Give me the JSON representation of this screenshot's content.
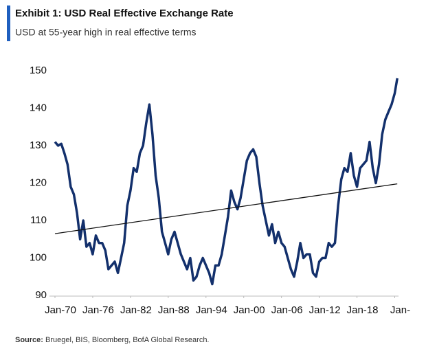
{
  "chart_data": {
    "type": "line",
    "title": "Exhibit 1: USD Real Effective Exchange Rate",
    "subtitle": "USD at 55-year high in real effective terms",
    "source_label": "Source:",
    "source": "Bruegel, BIS, Bloomberg, BofA Global Research.",
    "xlim": [
      1970,
      2024.6
    ],
    "ylim": [
      90,
      150
    ],
    "yticks": [
      90,
      100,
      110,
      120,
      130,
      140,
      150
    ],
    "xticks": [
      {
        "value": 1970,
        "label": "Jan-70"
      },
      {
        "value": 1976,
        "label": "Jan-76"
      },
      {
        "value": 1982,
        "label": "Jan-82"
      },
      {
        "value": 1988,
        "label": "Jan-88"
      },
      {
        "value": 1994,
        "label": "Jan-94"
      },
      {
        "value": 2000,
        "label": "Jan-00"
      },
      {
        "value": 2006,
        "label": "Jan-06"
      },
      {
        "value": 2012,
        "label": "Jan-12"
      },
      {
        "value": 2018,
        "label": "Jan-18"
      },
      {
        "value": 2024,
        "label": "Jan-"
      }
    ],
    "series": [
      {
        "color": "#13306c",
        "x": [
          1970,
          1970.5,
          1971,
          1971.5,
          1972,
          1972.5,
          1973,
          1973.5,
          1974,
          1974.5,
          1975,
          1975.5,
          1976,
          1976.5,
          1977,
          1977.5,
          1978,
          1978.5,
          1979,
          1979.5,
          1980,
          1980.5,
          1981,
          1981.5,
          1982,
          1982.5,
          1983,
          1983.5,
          1984,
          1984.5,
          1985,
          1985.5,
          1986,
          1986.5,
          1987,
          1987.5,
          1988,
          1988.5,
          1989,
          1989.5,
          1990,
          1990.5,
          1991,
          1991.5,
          1992,
          1992.5,
          1993,
          1993.5,
          1994,
          1994.5,
          1995,
          1995.5,
          1996,
          1996.5,
          1997,
          1997.5,
          1998,
          1998.5,
          1999,
          1999.5,
          2000,
          2000.5,
          2001,
          2001.5,
          2002,
          2002.5,
          2003,
          2003.5,
          2004,
          2004.5,
          2005,
          2005.5,
          2006,
          2006.5,
          2007,
          2007.5,
          2008,
          2008.5,
          2009,
          2009.5,
          2010,
          2010.5,
          2011,
          2011.5,
          2012,
          2012.5,
          2013,
          2013.5,
          2014,
          2014.5,
          2015,
          2015.5,
          2016,
          2016.5,
          2017,
          2017.5,
          2018,
          2018.5,
          2019,
          2019.5,
          2020,
          2020.5,
          2021,
          2021.5,
          2022,
          2022.5,
          2023,
          2023.5,
          2024,
          2024.4
        ],
        "values": [
          131,
          130,
          130.5,
          128,
          125,
          119,
          117,
          112,
          105,
          110,
          103,
          104,
          101,
          106,
          104,
          104,
          102,
          97,
          98,
          99,
          96,
          100,
          104,
          114,
          118,
          124,
          123,
          128,
          130,
          136,
          141,
          133,
          122,
          116,
          107,
          104,
          101,
          105,
          107,
          104,
          101,
          99,
          97,
          100,
          94,
          95,
          98,
          100,
          98,
          96,
          93,
          98,
          98,
          101,
          106,
          111,
          118,
          115,
          113,
          116,
          121,
          126,
          128,
          129,
          127,
          120,
          114,
          110,
          106,
          109,
          104,
          107,
          104,
          103,
          100,
          97,
          95,
          99,
          104,
          100,
          101,
          101,
          96,
          95,
          99,
          100,
          100,
          104,
          103,
          104,
          114,
          121,
          124,
          123,
          128,
          122,
          119,
          124,
          125,
          126,
          131,
          124,
          120,
          125,
          133,
          137,
          139,
          141,
          144,
          148
        ]
      },
      {
        "color": "#111111",
        "x": [
          1970,
          2024.4
        ],
        "values": [
          106.5,
          119.8
        ]
      }
    ]
  }
}
